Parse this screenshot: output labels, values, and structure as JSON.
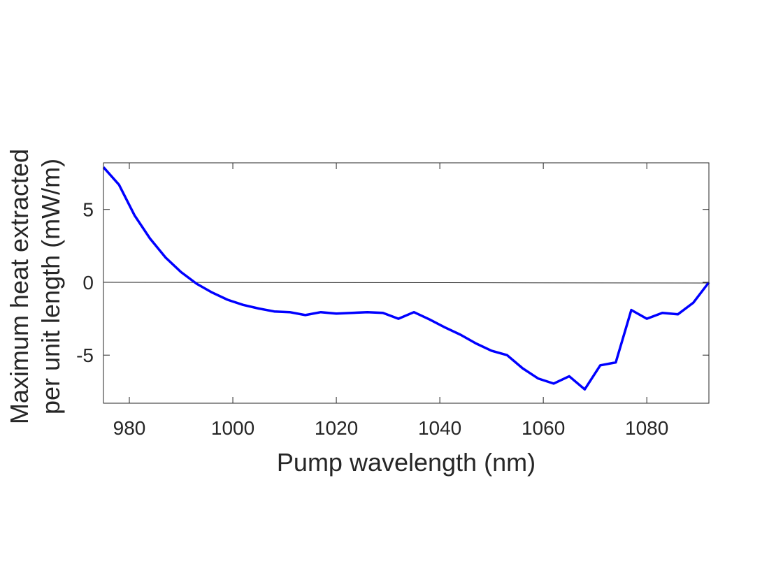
{
  "chart_data": {
    "type": "line",
    "xlabel": "Pump wavelength (nm)",
    "ylabel_lines": [
      "Maximum heat extracted",
      "per unit length (mW/m)"
    ],
    "xlim": [
      975,
      1092
    ],
    "ylim": [
      -8.3,
      8.2
    ],
    "xticks": [
      980,
      1000,
      1020,
      1040,
      1060,
      1080
    ],
    "yticks": [
      5,
      0,
      -5
    ],
    "ytick_labels": [
      "5",
      "0",
      "-5"
    ],
    "grid": false,
    "colors": {
      "series": "#0000ff",
      "zero_line": "#262626",
      "axes": "#262626"
    },
    "series": [
      {
        "x": [
          975,
          978,
          981,
          984,
          987,
          990,
          993,
          996,
          999,
          1002,
          1005,
          1008,
          1011,
          1014,
          1017,
          1020,
          1023,
          1026,
          1029,
          1032,
          1035,
          1038,
          1041,
          1044,
          1047,
          1050,
          1053,
          1056,
          1059,
          1062,
          1065,
          1068,
          1071,
          1074,
          1077,
          1080,
          1083,
          1086,
          1089,
          1092
        ],
        "y": [
          7.9,
          6.7,
          4.6,
          3.0,
          1.7,
          0.7,
          -0.1,
          -0.7,
          -1.2,
          -1.55,
          -1.8,
          -2.0,
          -2.05,
          -2.25,
          -2.05,
          -2.15,
          -2.1,
          -2.05,
          -2.1,
          -2.5,
          -2.05,
          -2.55,
          -3.1,
          -3.6,
          -4.2,
          -4.7,
          -5.0,
          -5.9,
          -6.6,
          -6.95,
          -6.45,
          -7.35,
          -5.7,
          -5.5,
          -1.9,
          -2.5,
          -2.1,
          -2.2,
          -1.4,
          0.0
        ]
      }
    ],
    "reference_line": {
      "y": [
        0,
        -0.05
      ]
    }
  }
}
